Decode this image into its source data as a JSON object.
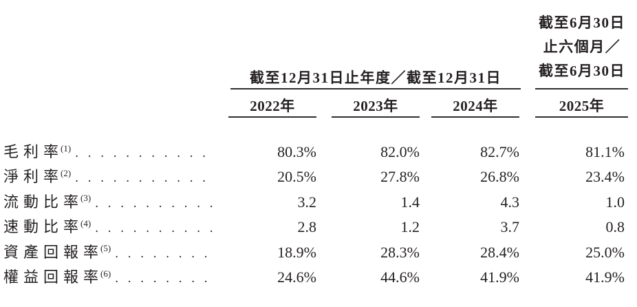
{
  "table": {
    "annual_header": "截至12月31日止年度／截至12月31日",
    "interim_header_lines": [
      "截至6月30日",
      "止六個月／",
      "截至6月30日"
    ],
    "year_columns": [
      "2022年",
      "2023年",
      "2024年",
      "2025年"
    ],
    "rows": [
      {
        "label": "毛利率",
        "footnote": "(1)",
        "values": [
          "80.3%",
          "82.0%",
          "82.7%",
          "81.1%"
        ]
      },
      {
        "label": "淨利率",
        "footnote": "(2)",
        "values": [
          "20.5%",
          "27.8%",
          "26.8%",
          "23.4%"
        ]
      },
      {
        "label": "流動比率",
        "footnote": "(3)",
        "values": [
          "3.2",
          "1.4",
          "4.3",
          "1.0"
        ]
      },
      {
        "label": "速動比率",
        "footnote": "(4)",
        "values": [
          "2.8",
          "1.2",
          "3.7",
          "0.8"
        ]
      },
      {
        "label": "資產回報率",
        "footnote": "(5)",
        "values": [
          "18.9%",
          "28.3%",
          "28.4%",
          "25.0%"
        ]
      },
      {
        "label": "權益回報率",
        "footnote": "(6)",
        "values": [
          "24.6%",
          "44.6%",
          "41.9%",
          "41.9%"
        ]
      }
    ],
    "leader_char": ".",
    "colors": {
      "text": "#231f20",
      "rule": "#2e2e2e"
    }
  }
}
